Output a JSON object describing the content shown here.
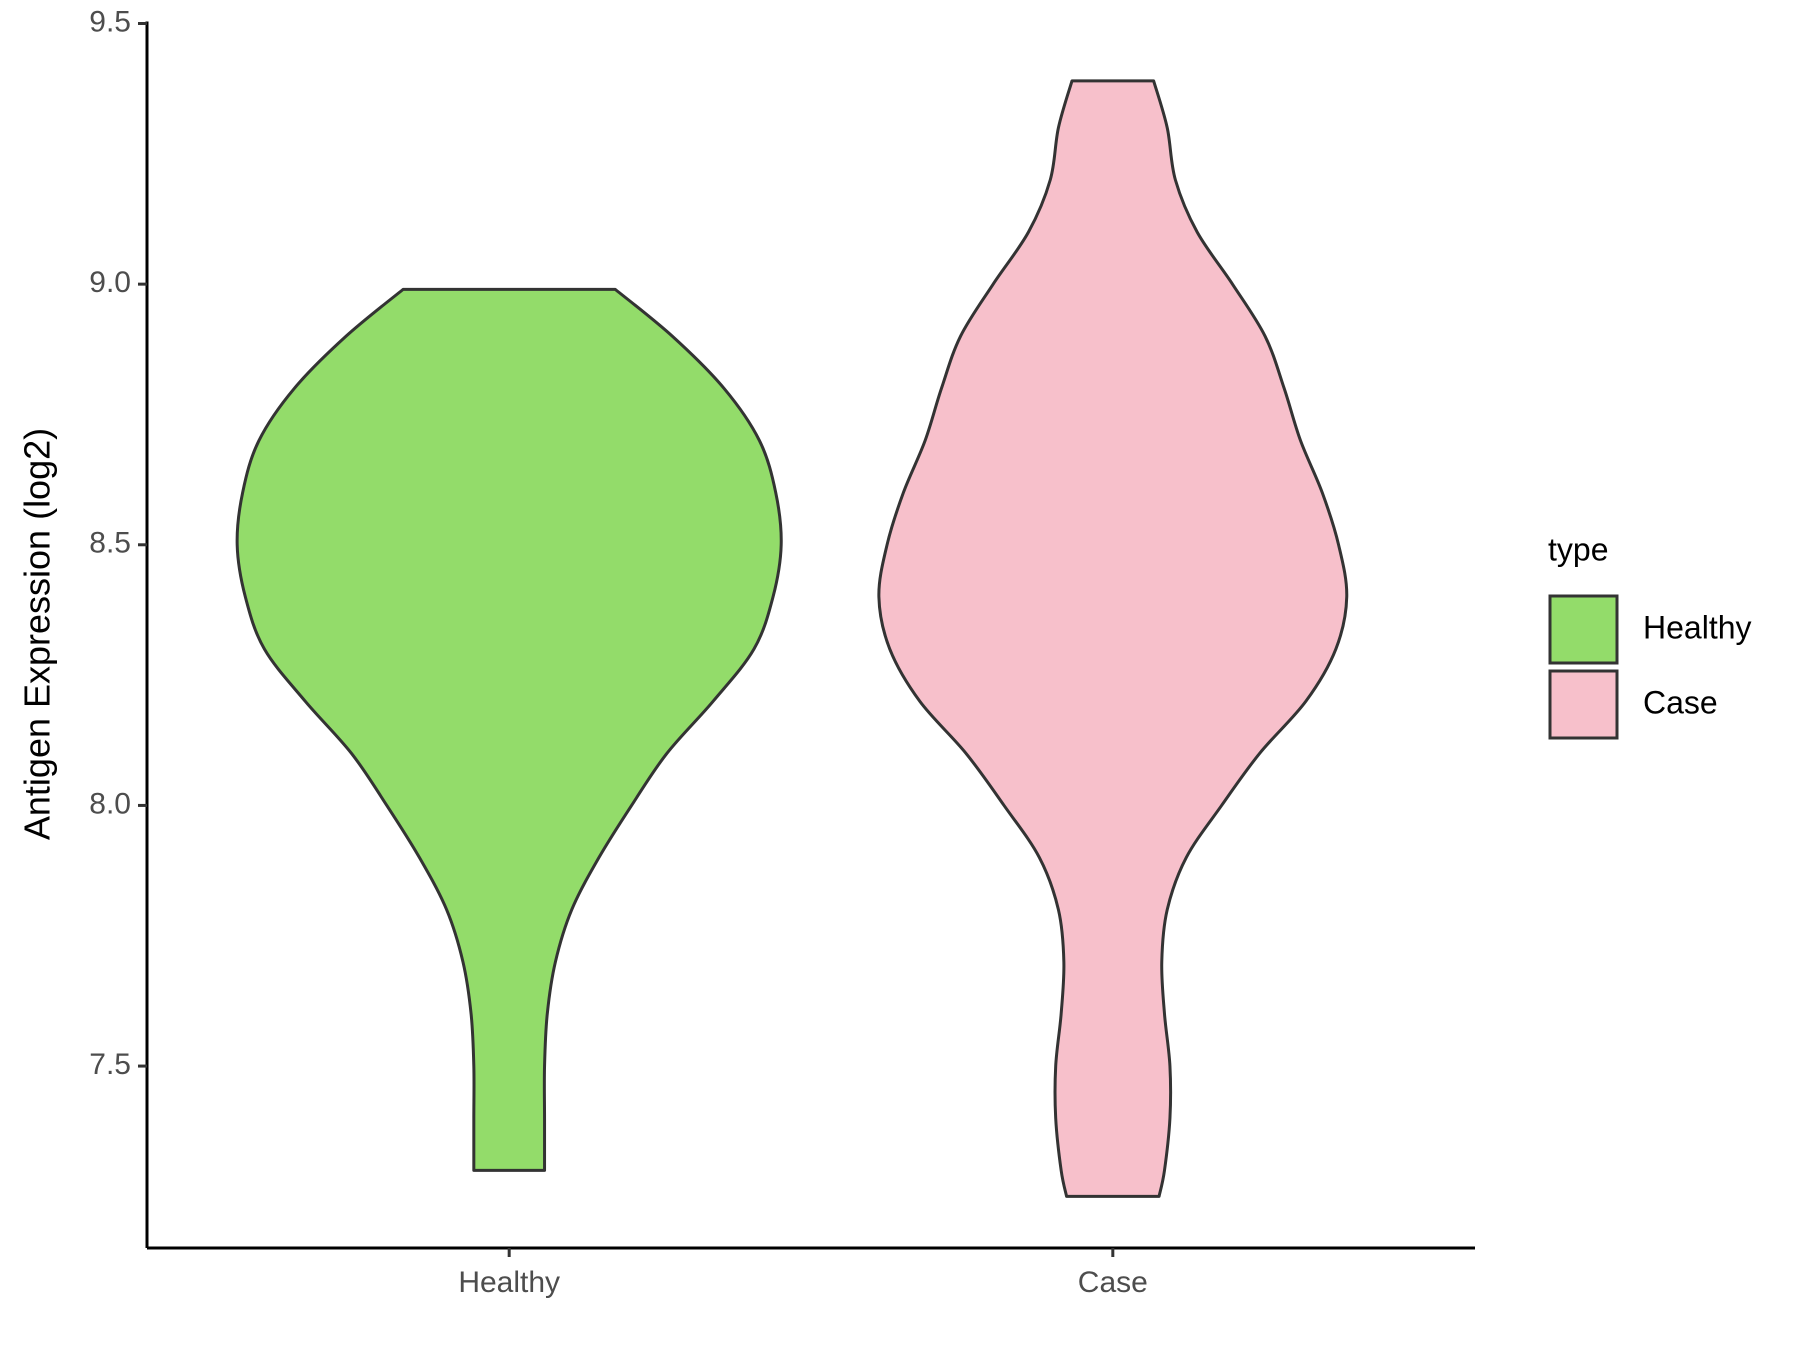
{
  "chart_data": {
    "type": "violin",
    "ylabel": "Antigen Expression (log2)",
    "categories": [
      "Healthy",
      "Case"
    ],
    "legend_title": "type",
    "ylim": [
      7.151,
      9.5
    ],
    "yticks": [
      {
        "value": 7.5,
        "label": "7.5"
      },
      {
        "value": 8.0,
        "label": "8.0"
      },
      {
        "value": 8.5,
        "label": "8.5"
      },
      {
        "value": 9.0,
        "label": "9.0"
      },
      {
        "value": 9.5,
        "label": "9.5"
      }
    ],
    "series": [
      {
        "name": "Healthy",
        "color": "#93dc6a",
        "y": [
          8.99,
          8.9,
          8.8,
          8.7,
          8.6,
          8.5,
          8.4,
          8.3,
          8.2,
          8.1,
          8.0,
          7.9,
          7.8,
          7.7,
          7.6,
          7.5,
          7.4,
          7.3
        ],
        "density": [
          0.39,
          0.6,
          0.79,
          0.92,
          0.98,
          1.0,
          0.97,
          0.9,
          0.75,
          0.58,
          0.45,
          0.33,
          0.23,
          0.17,
          0.14,
          0.13,
          0.13,
          0.13
        ]
      },
      {
        "name": "Case",
        "color": "#f7c0cb",
        "y": [
          9.39,
          9.3,
          9.2,
          9.1,
          9.0,
          8.9,
          8.8,
          8.7,
          8.6,
          8.5,
          8.4,
          8.3,
          8.2,
          8.1,
          8.0,
          7.9,
          7.8,
          7.7,
          7.6,
          7.5,
          7.4,
          7.3,
          7.25
        ],
        "density": [
          0.15,
          0.2,
          0.23,
          0.31,
          0.44,
          0.56,
          0.63,
          0.69,
          0.77,
          0.83,
          0.86,
          0.82,
          0.71,
          0.54,
          0.4,
          0.27,
          0.2,
          0.18,
          0.19,
          0.21,
          0.21,
          0.19,
          0.17
        ]
      }
    ]
  }
}
